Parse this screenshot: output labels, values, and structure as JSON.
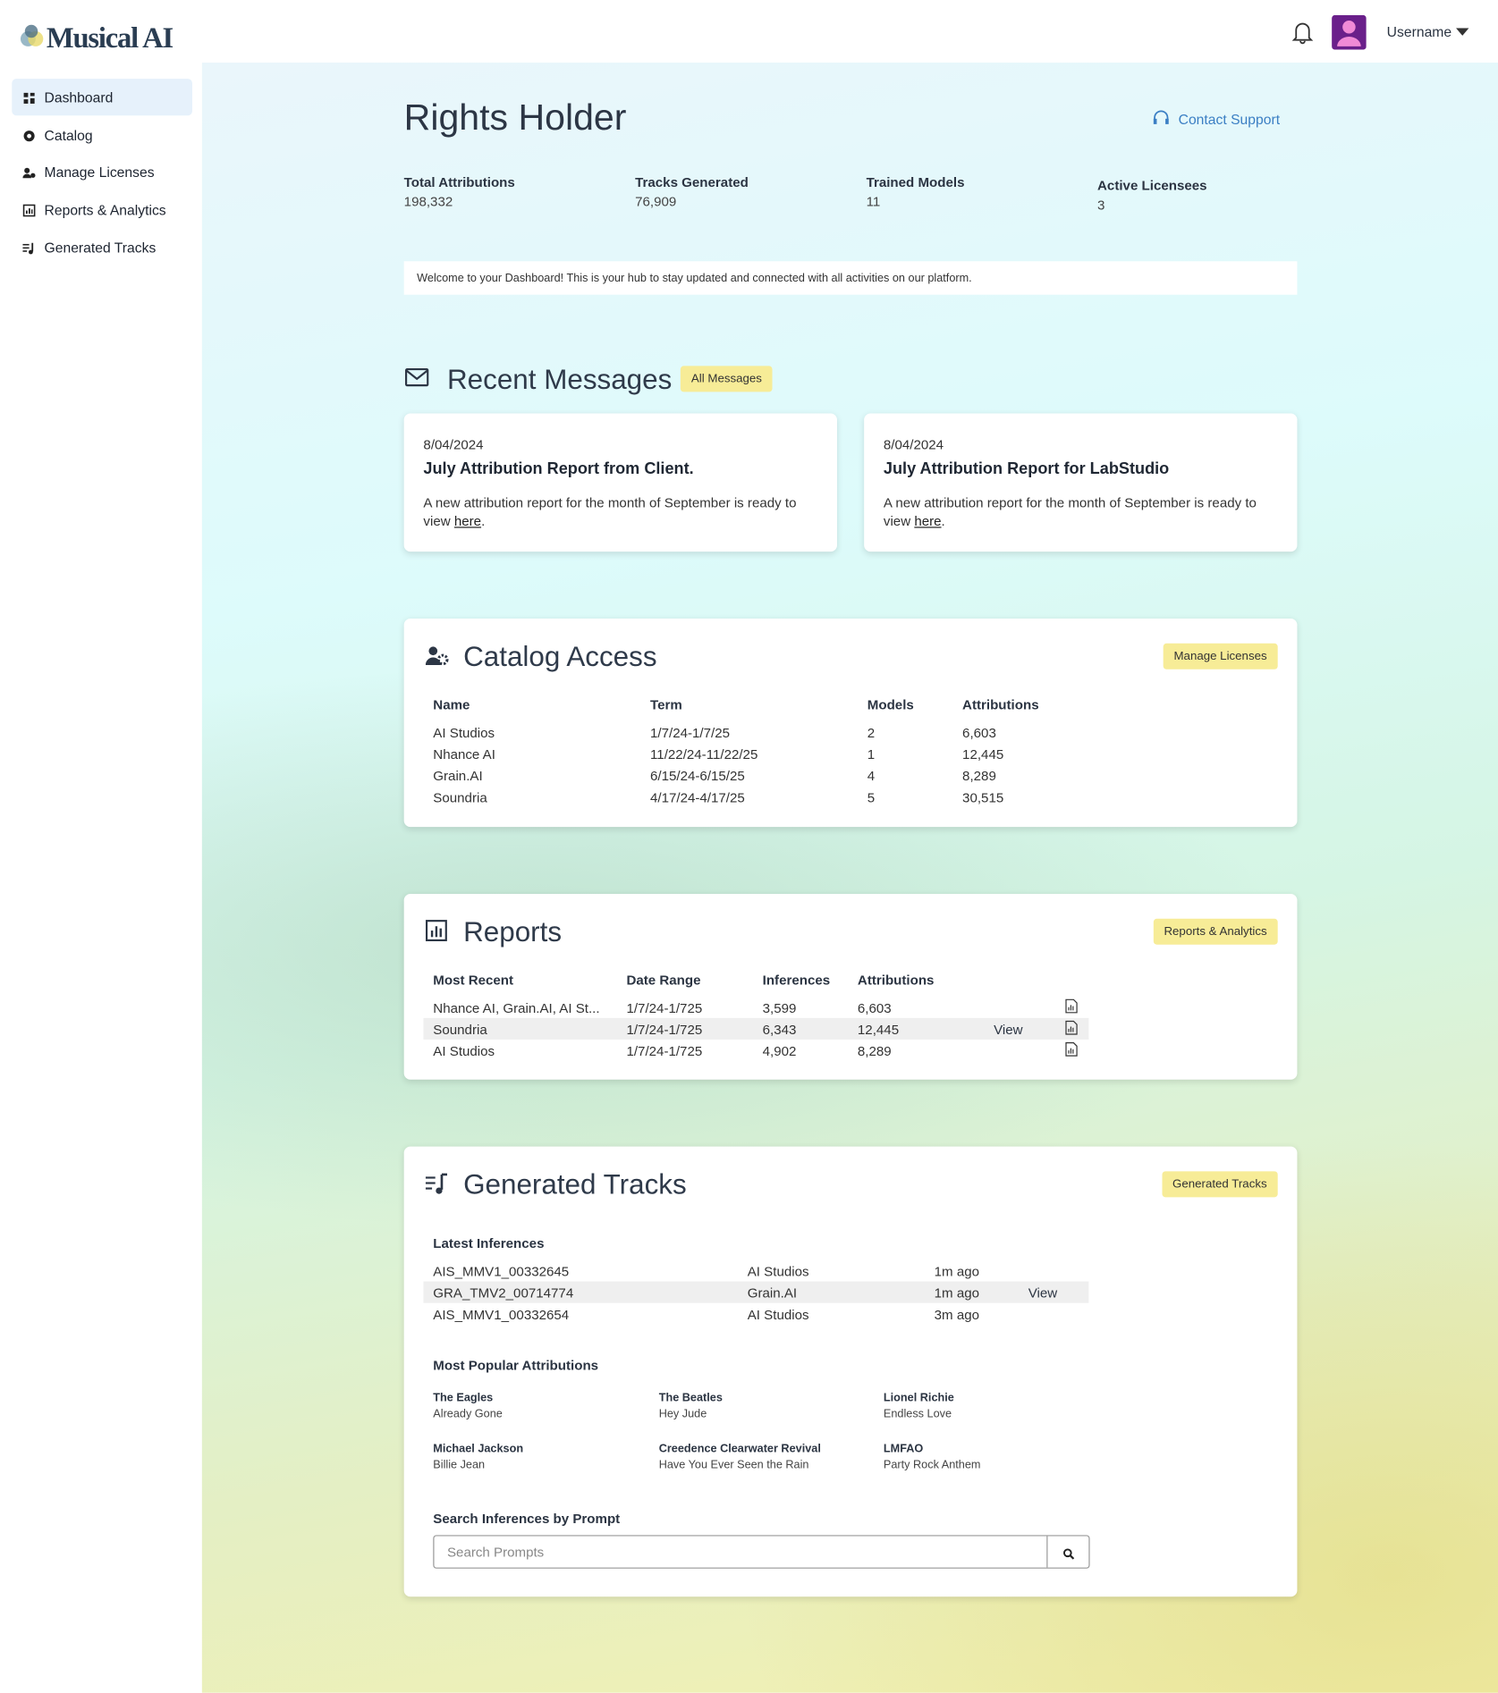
{
  "header": {
    "logo": "Musical AI",
    "username": "Username"
  },
  "sidebar": {
    "items": [
      "Dashboard",
      "Catalog",
      "Manage Licenses",
      "Reports & Analytics",
      "Generated Tracks"
    ]
  },
  "page": {
    "title": "Rights Holder",
    "contact": "Contact Support",
    "stats": [
      {
        "label": "Total Attributions",
        "value": "198,332"
      },
      {
        "label": "Tracks Generated",
        "value": "76,909"
      },
      {
        "label": "Trained Models",
        "value": "11"
      },
      {
        "label": "Active Licensees",
        "value": "3"
      }
    ],
    "welcome": "Welcome to your Dashboard! This is your hub to stay updated and connected with all activities on our platform."
  },
  "messages": {
    "title": "Recent Messages",
    "button": "All Messages",
    "items": [
      {
        "date": "8/04/2024",
        "title": "July Attribution Report from Client.",
        "body": "A new attribution report for the month of September is ready to view",
        "link": "here",
        "suffix": "."
      },
      {
        "date": "8/04/2024",
        "title": "July Attribution Report for LabStudio",
        "body": "A new attribution report for the month of September is ready to view",
        "link": "here",
        "suffix": "."
      }
    ]
  },
  "catalog": {
    "title": "Catalog Access",
    "button": "Manage Licenses",
    "columns": [
      "Name",
      "Term",
      "Models",
      "Attributions"
    ],
    "rows": [
      [
        "AI Studios",
        "1/7/24-1/7/25",
        "2",
        "6,603"
      ],
      [
        "Nhance AI",
        "11/22/24-11/22/25",
        "1",
        "12,445"
      ],
      [
        "Grain.AI",
        "6/15/24-6/15/25",
        "4",
        "8,289"
      ],
      [
        "Soundria",
        "4/17/24-4/17/25",
        "5",
        "30,515"
      ]
    ]
  },
  "reports": {
    "title": "Reports",
    "button": "Reports & Analytics",
    "columns": [
      "Most Recent",
      "Date Range",
      "Inferences",
      "Attributions"
    ],
    "rows": [
      [
        "Nhance AI, Grain.AI, AI St...",
        "1/7/24-1/725",
        "3,599",
        "6,603"
      ],
      [
        "Soundria",
        "1/7/24-1/725",
        "6,343",
        "12,445"
      ],
      [
        "AI Studios",
        "1/7/24-1/725",
        "4,902",
        "8,289"
      ]
    ],
    "view": "View"
  },
  "tracks": {
    "title": "Generated Tracks",
    "button": "Generated Tracks",
    "latest_heading": "Latest Inferences",
    "latest": [
      [
        "AIS_MMV1_00332645",
        "AI Studios",
        "1m ago"
      ],
      [
        "GRA_TMV2_00714774",
        "Grain.AI",
        "1m ago"
      ],
      [
        "AIS_MMV1_00332654",
        "AI Studios",
        "3m ago"
      ]
    ],
    "view": "View",
    "popular_heading": "Most Popular Attributions",
    "popular": [
      {
        "artist": "The Eagles",
        "song": "Already Gone"
      },
      {
        "artist": "The Beatles",
        "song": "Hey Jude"
      },
      {
        "artist": "Lionel Richie",
        "song": "Endless Love"
      },
      {
        "artist": "Michael Jackson",
        "song": "Billie Jean"
      },
      {
        "artist": "Creedence Clearwater Revival",
        "song": "Have You Ever Seen the Rain"
      },
      {
        "artist": "LMFAO",
        "song": "Party Rock Anthem"
      }
    ],
    "search_heading": "Search Inferences by Prompt",
    "search_placeholder": "Search Prompts"
  }
}
